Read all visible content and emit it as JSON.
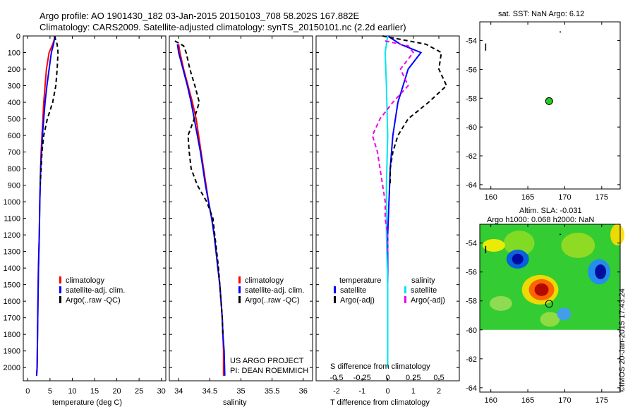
{
  "header": {
    "line1": "Argo profile: AO 1901430_182 03-Jan-2015 20150103_708 58.202S 167.882E",
    "line2": "Climatology: CARS2009. Satellite-adjusted climatology: synTS_20150101.nc (2.2d earlier)"
  },
  "colors": {
    "climatology": "#ff0000",
    "satellite": "#0000ff",
    "argo": "#000000",
    "salinity_satellite": "#00e5ee",
    "salinity_argo": "#ee00ee",
    "map_marker": "#22cc22"
  },
  "chart_data": [
    {
      "type": "line",
      "id": "temperature",
      "xlabel": "temperature (deg C)",
      "xlim": [
        -1,
        31
      ],
      "xticks": [
        0,
        5,
        10,
        15,
        20,
        25,
        30
      ],
      "ylim": [
        2080,
        0
      ],
      "yticks": [
        0,
        100,
        200,
        300,
        400,
        500,
        600,
        700,
        800,
        900,
        1000,
        1100,
        1200,
        1300,
        1400,
        1500,
        1600,
        1700,
        1800,
        1900,
        2000
      ],
      "legend": [
        "climatology",
        "satellite-adj. clim.",
        "Argo(..raw -QC)"
      ],
      "series": [
        {
          "name": "climatology",
          "color_key": "climatology",
          "dash": false,
          "points": [
            [
              6.2,
              0
            ],
            [
              5.6,
              50
            ],
            [
              4.8,
              100
            ],
            [
              4.2,
              200
            ],
            [
              3.9,
              300
            ],
            [
              3.6,
              400
            ],
            [
              3.4,
              500
            ],
            [
              3.2,
              600
            ],
            [
              3.0,
              700
            ],
            [
              2.9,
              800
            ],
            [
              2.8,
              900
            ],
            [
              2.7,
              1000
            ],
            [
              2.6,
              1200
            ],
            [
              2.4,
              1400
            ],
            [
              2.3,
              1600
            ],
            [
              2.2,
              1800
            ],
            [
              2.1,
              2000
            ],
            [
              2.0,
              2050
            ]
          ]
        },
        {
          "name": "satellite-adj. clim.",
          "color_key": "satellite",
          "dash": false,
          "points": [
            [
              6.1,
              0
            ],
            [
              5.8,
              50
            ],
            [
              5.3,
              100
            ],
            [
              4.8,
              200
            ],
            [
              4.3,
              300
            ],
            [
              3.9,
              400
            ],
            [
              3.6,
              500
            ],
            [
              3.3,
              600
            ],
            [
              3.1,
              700
            ],
            [
              2.9,
              800
            ],
            [
              2.8,
              900
            ],
            [
              2.7,
              1000
            ],
            [
              2.6,
              1200
            ],
            [
              2.4,
              1400
            ],
            [
              2.3,
              1600
            ],
            [
              2.2,
              1800
            ],
            [
              2.1,
              2000
            ],
            [
              2.0,
              2050
            ]
          ]
        },
        {
          "name": "Argo(..raw -QC)",
          "color_key": "argo",
          "dash": true,
          "points": [
            [
              6.0,
              0
            ],
            [
              6.6,
              50
            ],
            [
              6.8,
              100
            ],
            [
              6.6,
              200
            ],
            [
              6.3,
              300
            ],
            [
              5.6,
              400
            ],
            [
              4.4,
              500
            ],
            [
              3.6,
              600
            ],
            [
              3.2,
              700
            ],
            [
              3.0,
              800
            ],
            [
              2.8,
              900
            ]
          ]
        }
      ]
    },
    {
      "type": "line",
      "id": "salinity",
      "xlabel": "salinity",
      "xlim": [
        33.85,
        36.15
      ],
      "xticks": [
        34,
        34.5,
        35,
        35.5,
        36
      ],
      "ylim": [
        2080,
        0
      ],
      "legend": [
        "climatology",
        "satellite-adj. clim.",
        "Argo(..raw -QC)"
      ],
      "annotation": [
        "US ARGO PROJECT",
        "PI: DEAN ROEMMICH"
      ],
      "series": [
        {
          "name": "climatology",
          "color_key": "climatology",
          "dash": false,
          "points": [
            [
              34.0,
              50
            ],
            [
              34.02,
              100
            ],
            [
              34.08,
              200
            ],
            [
              34.15,
              300
            ],
            [
              34.22,
              400
            ],
            [
              34.28,
              500
            ],
            [
              34.32,
              600
            ],
            [
              34.36,
              700
            ],
            [
              34.4,
              800
            ],
            [
              34.44,
              900
            ],
            [
              34.48,
              1000
            ],
            [
              34.53,
              1100
            ],
            [
              34.57,
              1200
            ],
            [
              34.6,
              1300
            ],
            [
              34.63,
              1400
            ],
            [
              34.66,
              1500
            ],
            [
              34.68,
              1600
            ],
            [
              34.7,
              1700
            ],
            [
              34.71,
              1800
            ],
            [
              34.72,
              1900
            ],
            [
              34.72,
              2050
            ]
          ]
        },
        {
          "name": "satellite-adj. clim.",
          "color_key": "satellite",
          "dash": false,
          "points": [
            [
              33.98,
              50
            ],
            [
              34.0,
              100
            ],
            [
              34.07,
              200
            ],
            [
              34.14,
              300
            ],
            [
              34.2,
              400
            ],
            [
              34.25,
              500
            ],
            [
              34.3,
              600
            ],
            [
              34.35,
              700
            ],
            [
              34.39,
              800
            ],
            [
              34.43,
              900
            ],
            [
              34.48,
              1000
            ],
            [
              34.53,
              1100
            ],
            [
              34.57,
              1200
            ],
            [
              34.6,
              1300
            ],
            [
              34.63,
              1400
            ],
            [
              34.66,
              1500
            ],
            [
              34.68,
              1600
            ],
            [
              34.7,
              1700
            ],
            [
              34.71,
              1800
            ],
            [
              34.73,
              1900
            ],
            [
              34.74,
              2050
            ]
          ]
        },
        {
          "name": "Argo(..raw -QC)",
          "color_key": "argo",
          "dash": true,
          "points": [
            [
              33.94,
              30
            ],
            [
              34.08,
              60
            ],
            [
              34.12,
              100
            ],
            [
              34.18,
              200
            ],
            [
              34.26,
              300
            ],
            [
              34.33,
              400
            ],
            [
              34.25,
              500
            ],
            [
              34.15,
              600
            ],
            [
              34.17,
              700
            ],
            [
              34.2,
              800
            ],
            [
              34.3,
              900
            ],
            [
              34.45,
              1000
            ],
            [
              34.55,
              1100
            ],
            [
              34.58,
              1200
            ],
            [
              34.61,
              1300
            ],
            [
              34.64,
              1400
            ],
            [
              34.66,
              1500
            ],
            [
              34.68,
              1600
            ],
            [
              34.7,
              1700
            ],
            [
              34.71,
              1800
            ]
          ]
        }
      ]
    },
    {
      "type": "line",
      "id": "difference",
      "xlabel": "T difference from climatology",
      "xlabel_top": "S difference from climatology",
      "xlim": [
        -2.8,
        2.8
      ],
      "xticks": [
        -2,
        -1,
        0,
        1,
        2
      ],
      "xticks_top": [
        "-0.5",
        "-0.25",
        "0",
        "0.25",
        "0.5"
      ],
      "xticks_top_pos": [
        -2,
        -1,
        0,
        1,
        2
      ],
      "ylim": [
        2080,
        0
      ],
      "legend_temperature_title": "temperature",
      "legend_salinity_title": "salinity",
      "legend_temperature": [
        "satellite",
        "Argo(-adj)"
      ],
      "legend_salinity": [
        "satellite",
        "Argo(-adj)"
      ],
      "series": [
        {
          "name": "T satellite",
          "color_key": "satellite",
          "dash": false,
          "points": [
            [
              0.0,
              0
            ],
            [
              0.5,
              50
            ],
            [
              1.3,
              100
            ],
            [
              0.8,
              200
            ],
            [
              0.6,
              300
            ],
            [
              0.4,
              400
            ],
            [
              0.3,
              500
            ],
            [
              0.2,
              600
            ],
            [
              0.15,
              700
            ],
            [
              0.1,
              800
            ],
            [
              0.05,
              1000
            ],
            [
              0.0,
              1200
            ],
            [
              0.0,
              1500
            ],
            [
              0.0,
              2000
            ]
          ]
        },
        {
          "name": "T Argo(-adj)",
          "color_key": "argo",
          "dash": true,
          "points": [
            [
              -0.2,
              0
            ],
            [
              1.5,
              50
            ],
            [
              2.1,
              100
            ],
            [
              2.0,
              200
            ],
            [
              2.3,
              300
            ],
            [
              1.6,
              400
            ],
            [
              0.8,
              500
            ],
            [
              0.4,
              600
            ],
            [
              0.2,
              700
            ],
            [
              0.1,
              800
            ],
            [
              0.1,
              900
            ]
          ]
        },
        {
          "name": "S satellite",
          "color_key": "salinity_satellite",
          "dash": false,
          "points": [
            [
              0.0,
              0
            ],
            [
              -0.1,
              100
            ],
            [
              -0.05,
              300
            ],
            [
              0.0,
              600
            ],
            [
              -0.05,
              900
            ],
            [
              -0.05,
              1200
            ],
            [
              0.0,
              1500
            ],
            [
              0.0,
              2000
            ]
          ]
        },
        {
          "name": "S Argo(-adj)",
          "color_key": "salinity_argo",
          "dash": true,
          "points": [
            [
              -0.1,
              30
            ],
            [
              0.8,
              60
            ],
            [
              1.0,
              100
            ],
            [
              0.5,
              200
            ],
            [
              0.8,
              300
            ],
            [
              0.2,
              400
            ],
            [
              -0.3,
              500
            ],
            [
              -0.6,
              600
            ],
            [
              -0.4,
              700
            ],
            [
              -0.3,
              800
            ],
            [
              -0.2,
              900
            ],
            [
              -0.1,
              1000
            ],
            [
              -0.1,
              1100
            ],
            [
              0.0,
              1200
            ],
            [
              0.0,
              1300
            ]
          ]
        }
      ]
    },
    {
      "type": "scatter",
      "id": "sst_map",
      "title": "sat. SST: NaN Argo: 6.12",
      "xlim": [
        158.5,
        177.5
      ],
      "xticks": [
        160,
        165,
        170,
        175
      ],
      "ylim": [
        -64.3,
        -52.7
      ],
      "yticks": [
        -54,
        -56,
        -58,
        -60,
        -62,
        -64
      ],
      "marker": [
        167.882,
        -58.202
      ]
    },
    {
      "type": "heatmap",
      "id": "sla_map",
      "title_line1": "Altim. SLA: -0.031",
      "title_line2": "Argo h1000: 0.068 h2000: NaN",
      "xlim": [
        158.5,
        177.5
      ],
      "xticks": [
        160,
        165,
        170,
        175
      ],
      "ylim": [
        -64.3,
        -52.7
      ],
      "yticks": [
        -54,
        -56,
        -58,
        -60,
        -62,
        -64
      ],
      "data_ylim": [
        -60,
        -52.7
      ],
      "marker": [
        167.882,
        -58.202
      ]
    }
  ],
  "credit": "©IMOS 20-Jan-2015 17:43:24"
}
